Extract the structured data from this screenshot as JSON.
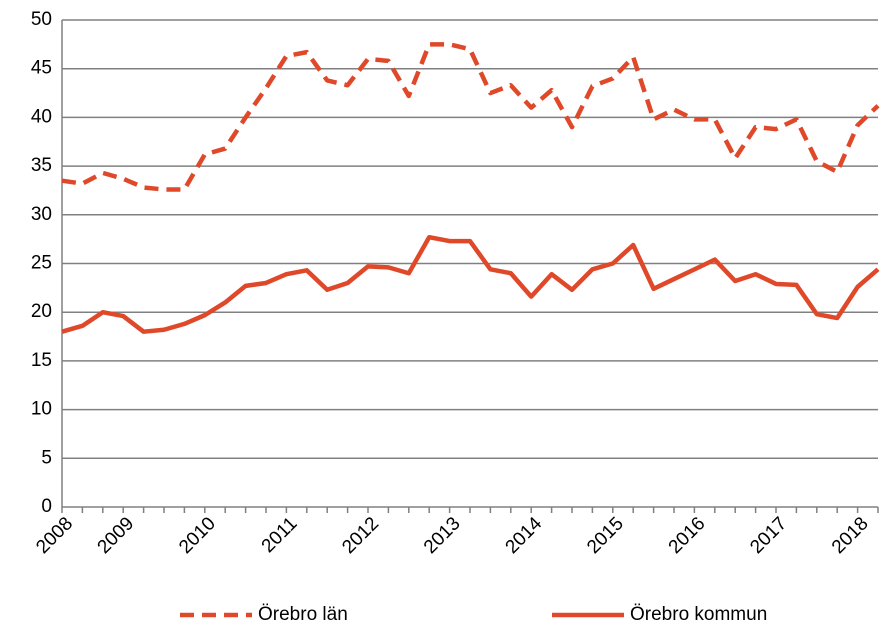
{
  "chart_data": {
    "type": "line",
    "categories": [
      "2008",
      null,
      null,
      "2009",
      null,
      null,
      null,
      "2010",
      null,
      null,
      null,
      "2011",
      null,
      null,
      null,
      "2012",
      null,
      null,
      null,
      "2013",
      null,
      null,
      null,
      "2014",
      null,
      null,
      null,
      "2015",
      null,
      null,
      null,
      "2016",
      null,
      null,
      null,
      "2017",
      null,
      null,
      null,
      "2018",
      null
    ],
    "series": [
      {
        "name": "Örebro län",
        "color": "#e0482a",
        "dash": true,
        "values": [
          33.5,
          33.2,
          34.3,
          33.7,
          32.8,
          32.6,
          32.6,
          36.2,
          36.8,
          40,
          43,
          46.3,
          46.7,
          43.8,
          43.3,
          46,
          45.8,
          42.2,
          47.5,
          47.5,
          47,
          42.5,
          43.3,
          41,
          42.8,
          39,
          43.2,
          44,
          46.2,
          39.8,
          40.8,
          39.8,
          39.8,
          35.8,
          39,
          38.8,
          39.8,
          35.5,
          34.4,
          39.2,
          41.2
        ]
      },
      {
        "name": "Örebro kommun",
        "color": "#e0482a",
        "dash": false,
        "values": [
          18,
          18.6,
          20,
          19.6,
          18,
          18.2,
          18.8,
          19.7,
          21,
          22.7,
          23,
          23.9,
          24.3,
          22.3,
          23,
          24.7,
          24.6,
          24,
          27.7,
          27.3,
          27.3,
          24.4,
          24,
          21.6,
          23.9,
          22.3,
          24.4,
          25,
          26.9,
          22.4,
          23.4,
          24.4,
          25.4,
          23.2,
          23.9,
          22.9,
          22.8,
          19.8,
          19.4,
          22.6,
          24.4
        ]
      }
    ],
    "ylim": [
      0,
      50
    ],
    "yticks": [
      0,
      5,
      10,
      15,
      20,
      25,
      30,
      35,
      40,
      45,
      50
    ],
    "grid": true,
    "legend": "bottom"
  }
}
